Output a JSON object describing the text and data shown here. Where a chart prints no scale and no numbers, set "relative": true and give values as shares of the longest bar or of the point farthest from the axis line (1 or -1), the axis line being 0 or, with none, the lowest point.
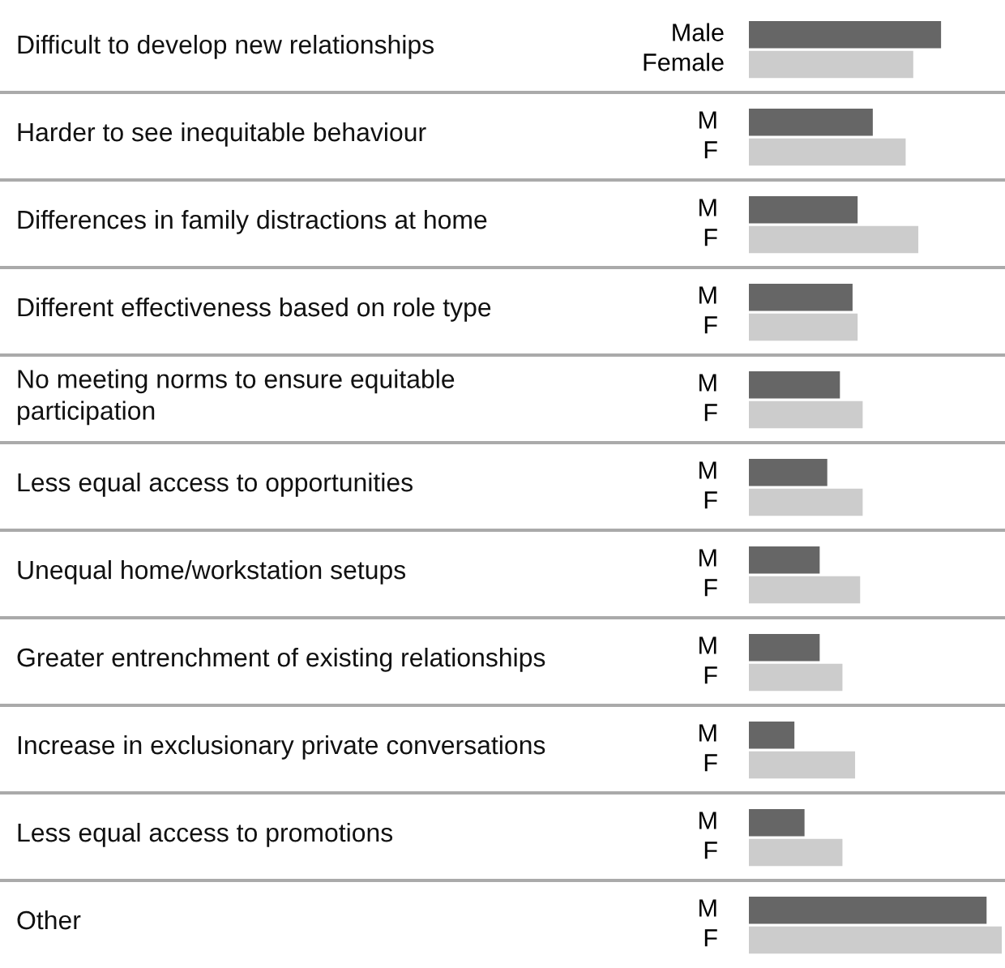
{
  "chart_data": {
    "type": "bar",
    "orientation": "horizontal",
    "relative": true,
    "grid": "y",
    "categories": [
      "Difficult to develop new relationships",
      "Harder to see inequitable behaviour",
      "Differences in family distractions at home",
      "Different effectiveness based on role type",
      "No meeting norms to ensure equitable\nparticipation",
      "Less equal access to opportunities",
      "Unequal home/workstation setups",
      "Greater entrenchment of existing relationships",
      "Increase in exclusionary private conversations",
      "Less equal access to promotions",
      "Other"
    ],
    "series": [
      {
        "name": "Male",
        "color": "#666666",
        "values": [
          0.76,
          0.49,
          0.43,
          0.41,
          0.36,
          0.31,
          0.28,
          0.28,
          0.18,
          0.22,
          0.94
        ]
      },
      {
        "name": "Female",
        "color": "#cccccc",
        "values": [
          0.65,
          0.62,
          0.67,
          0.43,
          0.45,
          0.45,
          0.44,
          0.37,
          0.42,
          0.37,
          1
        ]
      }
    ],
    "annotations": [
      "M",
      "F",
      "M",
      "F",
      "M",
      "F",
      "M",
      "F",
      "M",
      "F",
      "M",
      "F",
      "M",
      "F",
      "M",
      "F",
      "M",
      "F",
      "M",
      "F"
    ]
  }
}
